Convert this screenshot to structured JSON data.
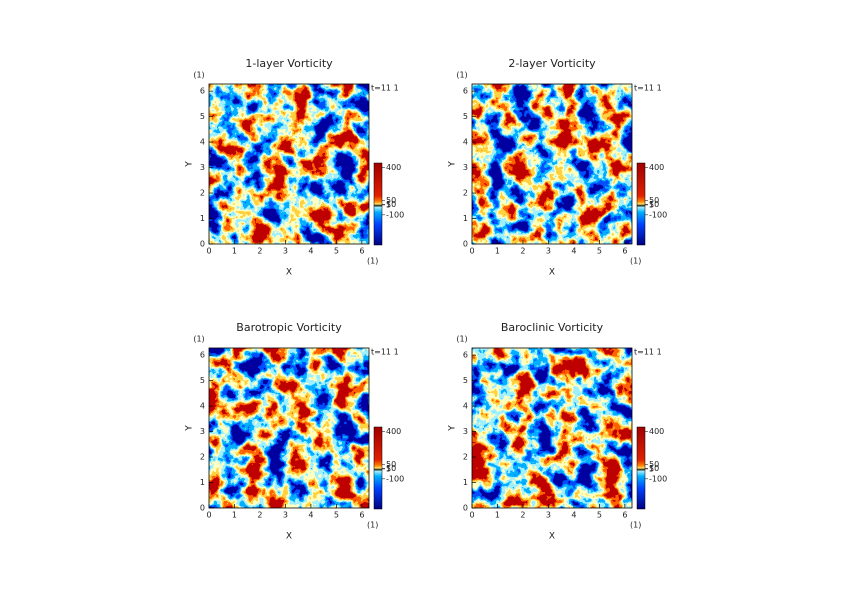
{
  "chart_data": [
    {
      "type": "field",
      "title": "1-layer Vorticity",
      "xlabel": "X",
      "ylabel": "Y",
      "xunit": "(1)",
      "yunit": "(1)",
      "annotation": "t=11 1",
      "xlim": [
        0,
        6.28
      ],
      "xticks": [
        0,
        1,
        2,
        3,
        4,
        5,
        6
      ],
      "ylim": [
        0,
        6.28
      ],
      "yticks": [
        0,
        1,
        2,
        3,
        4,
        5,
        6
      ],
      "colorbar": {
        "clim": [
          -420,
          450
        ],
        "ticks": [
          400,
          50,
          10,
          5,
          -100
        ]
      }
    },
    {
      "type": "field",
      "title": "2-layer Vorticity",
      "xlabel": "X",
      "ylabel": "Y",
      "xunit": "(1)",
      "yunit": "(1)",
      "annotation": "t=11 1",
      "xlim": [
        0,
        6.28
      ],
      "xticks": [
        0,
        1,
        2,
        3,
        4,
        5,
        6
      ],
      "ylim": [
        0,
        6.28
      ],
      "yticks": [
        0,
        1,
        2,
        3,
        4,
        5,
        6
      ],
      "colorbar": {
        "clim": [
          -420,
          450
        ],
        "ticks": [
          400,
          50,
          10,
          5,
          -100
        ]
      }
    },
    {
      "type": "field",
      "title": "Barotropic Vorticity",
      "xlabel": "X",
      "ylabel": "Y",
      "xunit": "(1)",
      "yunit": "(1)",
      "annotation": "t=11 1",
      "xlim": [
        0,
        6.28
      ],
      "xticks": [
        0,
        1,
        2,
        3,
        4,
        5,
        6
      ],
      "ylim": [
        0,
        6.28
      ],
      "yticks": [
        0,
        1,
        2,
        3,
        4,
        5,
        6
      ],
      "colorbar": {
        "clim": [
          -420,
          450
        ],
        "ticks": [
          400,
          50,
          10,
          5,
          -100
        ]
      }
    },
    {
      "type": "field",
      "title": "Baroclinic Vorticity",
      "xlabel": "X",
      "ylabel": "Y",
      "xunit": "(1)",
      "yunit": "(1)",
      "annotation": "t=11 1",
      "xlim": [
        0,
        6.28
      ],
      "xticks": [
        0,
        1,
        2,
        3,
        4,
        5,
        6
      ],
      "ylim": [
        0,
        6.28
      ],
      "yticks": [
        0,
        1,
        2,
        3,
        4,
        5,
        6
      ],
      "colorbar": {
        "clim": [
          -420,
          450
        ],
        "ticks": [
          400,
          50,
          10,
          5,
          -100
        ]
      }
    }
  ]
}
